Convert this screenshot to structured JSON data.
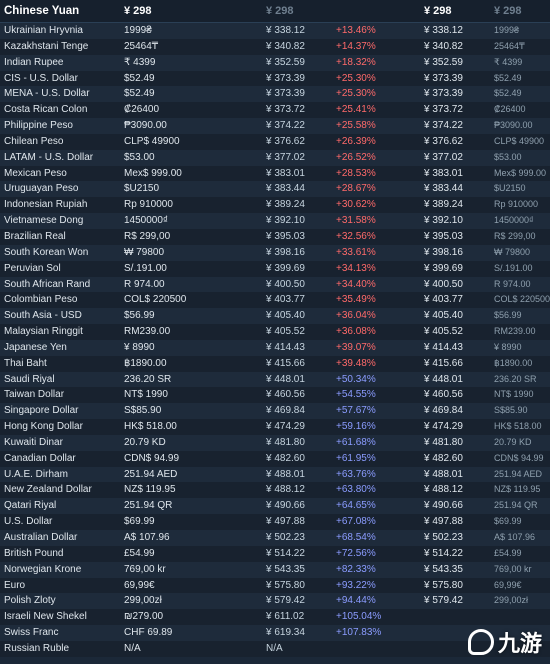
{
  "header": {
    "currency": "Chinese Yuan",
    "col_price": "¥ 298",
    "col_price_dim": "¥ 298",
    "col_price2": "¥ 298",
    "col_price2_dim": "¥ 298"
  },
  "rows": [
    [
      "Ukrainian Hryvnia",
      "1999₴",
      "¥ 338.12",
      "+13.46%",
      "¥ 338.12",
      "1999₴",
      "red"
    ],
    [
      "Kazakhstani Tenge",
      "25464₸",
      "¥ 340.82",
      "+14.37%",
      "¥ 340.82",
      "25464₸",
      "red"
    ],
    [
      "Indian Rupee",
      "₹ 4399",
      "¥ 352.59",
      "+18.32%",
      "¥ 352.59",
      "₹ 4399",
      "red"
    ],
    [
      "CIS - U.S. Dollar",
      "$52.49",
      "¥ 373.39",
      "+25.30%",
      "¥ 373.39",
      "$52.49",
      "red"
    ],
    [
      "MENA - U.S. Dollar",
      "$52.49",
      "¥ 373.39",
      "+25.30%",
      "¥ 373.39",
      "$52.49",
      "red"
    ],
    [
      "Costa Rican Colon",
      "₡26400",
      "¥ 373.72",
      "+25.41%",
      "¥ 373.72",
      "₡26400",
      "red"
    ],
    [
      "Philippine Peso",
      "₱3090.00",
      "¥ 374.22",
      "+25.58%",
      "¥ 374.22",
      "₱3090.00",
      "red"
    ],
    [
      "Chilean Peso",
      "CLP$ 49900",
      "¥ 376.62",
      "+26.39%",
      "¥ 376.62",
      "CLP$ 49900",
      "red"
    ],
    [
      "LATAM - U.S. Dollar",
      "$53.00",
      "¥ 377.02",
      "+26.52%",
      "¥ 377.02",
      "$53.00",
      "red"
    ],
    [
      "Mexican Peso",
      "Mex$ 999.00",
      "¥ 383.01",
      "+28.53%",
      "¥ 383.01",
      "Mex$ 999.00",
      "red"
    ],
    [
      "Uruguayan Peso",
      "$U2150",
      "¥ 383.44",
      "+28.67%",
      "¥ 383.44",
      "$U2150",
      "red"
    ],
    [
      "Indonesian Rupiah",
      "Rp 910000",
      "¥ 389.24",
      "+30.62%",
      "¥ 389.24",
      "Rp 910000",
      "red"
    ],
    [
      "Vietnamese Dong",
      "1450000₫",
      "¥ 392.10",
      "+31.58%",
      "¥ 392.10",
      "1450000₫",
      "red"
    ],
    [
      "Brazilian Real",
      "R$ 299,00",
      "¥ 395.03",
      "+32.56%",
      "¥ 395.03",
      "R$ 299,00",
      "red"
    ],
    [
      "South Korean Won",
      "₩ 79800",
      "¥ 398.16",
      "+33.61%",
      "¥ 398.16",
      "₩ 79800",
      "red"
    ],
    [
      "Peruvian Sol",
      "S/.191.00",
      "¥ 399.69",
      "+34.13%",
      "¥ 399.69",
      "S/.191.00",
      "red"
    ],
    [
      "South African Rand",
      "R 974.00",
      "¥ 400.50",
      "+34.40%",
      "¥ 400.50",
      "R 974.00",
      "red"
    ],
    [
      "Colombian Peso",
      "COL$ 220500",
      "¥ 403.77",
      "+35.49%",
      "¥ 403.77",
      "COL$ 220500",
      "red"
    ],
    [
      "South Asia - USD",
      "$56.99",
      "¥ 405.40",
      "+36.04%",
      "¥ 405.40",
      "$56.99",
      "red"
    ],
    [
      "Malaysian Ringgit",
      "RM239.00",
      "¥ 405.52",
      "+36.08%",
      "¥ 405.52",
      "RM239.00",
      "red"
    ],
    [
      "Japanese Yen",
      "¥ 8990",
      "¥ 414.43",
      "+39.07%",
      "¥ 414.43",
      "¥ 8990",
      "red"
    ],
    [
      "Thai Baht",
      "฿1890.00",
      "¥ 415.66",
      "+39.48%",
      "¥ 415.66",
      "฿1890.00",
      "red"
    ],
    [
      "Saudi Riyal",
      "236.20 SR",
      "¥ 448.01",
      "+50.34%",
      "¥ 448.01",
      "236.20 SR",
      "blue"
    ],
    [
      "Taiwan Dollar",
      "NT$ 1990",
      "¥ 460.56",
      "+54.55%",
      "¥ 460.56",
      "NT$ 1990",
      "blue"
    ],
    [
      "Singapore Dollar",
      "S$85.90",
      "¥ 469.84",
      "+57.67%",
      "¥ 469.84",
      "S$85.90",
      "blue"
    ],
    [
      "Hong Kong Dollar",
      "HK$ 518.00",
      "¥ 474.29",
      "+59.16%",
      "¥ 474.29",
      "HK$ 518.00",
      "blue"
    ],
    [
      "Kuwaiti Dinar",
      "20.79 KD",
      "¥ 481.80",
      "+61.68%",
      "¥ 481.80",
      "20.79 KD",
      "blue"
    ],
    [
      "Canadian Dollar",
      "CDN$ 94.99",
      "¥ 482.60",
      "+61.95%",
      "¥ 482.60",
      "CDN$ 94.99",
      "blue"
    ],
    [
      "U.A.E. Dirham",
      "251.94 AED",
      "¥ 488.01",
      "+63.76%",
      "¥ 488.01",
      "251.94 AED",
      "blue"
    ],
    [
      "New Zealand Dollar",
      "NZ$ 119.95",
      "¥ 488.12",
      "+63.80%",
      "¥ 488.12",
      "NZ$ 119.95",
      "blue"
    ],
    [
      "Qatari Riyal",
      "251.94 QR",
      "¥ 490.66",
      "+64.65%",
      "¥ 490.66",
      "251.94 QR",
      "blue"
    ],
    [
      "U.S. Dollar",
      "$69.99",
      "¥ 497.88",
      "+67.08%",
      "¥ 497.88",
      "$69.99",
      "blue"
    ],
    [
      "Australian Dollar",
      "A$ 107.96",
      "¥ 502.23",
      "+68.54%",
      "¥ 502.23",
      "A$ 107.96",
      "blue"
    ],
    [
      "British Pound",
      "£54.99",
      "¥ 514.22",
      "+72.56%",
      "¥ 514.22",
      "£54.99",
      "blue"
    ],
    [
      "Norwegian Krone",
      "769,00 kr",
      "¥ 543.35",
      "+82.33%",
      "¥ 543.35",
      "769,00 kr",
      "blue"
    ],
    [
      "Euro",
      "69,99€",
      "¥ 575.80",
      "+93.22%",
      "¥ 575.80",
      "69,99€",
      "blue"
    ],
    [
      "Polish Zloty",
      "299,00zł",
      "¥ 579.42",
      "+94.44%",
      "¥ 579.42",
      "299,00zł",
      "blue"
    ],
    [
      "Israeli New Shekel",
      "₪279.00",
      "¥ 611.02",
      "+105.04%",
      "",
      "",
      "blue"
    ],
    [
      "Swiss Franc",
      "CHF 69.89",
      "¥ 619.34",
      "+107.83%",
      "",
      "",
      "blue"
    ],
    [
      "Russian Ruble",
      "N/A",
      "N/A",
      "",
      "",
      "",
      "blue"
    ]
  ],
  "watermark": {
    "text": "九游",
    "icon": "jiuyou-logo-icon"
  }
}
